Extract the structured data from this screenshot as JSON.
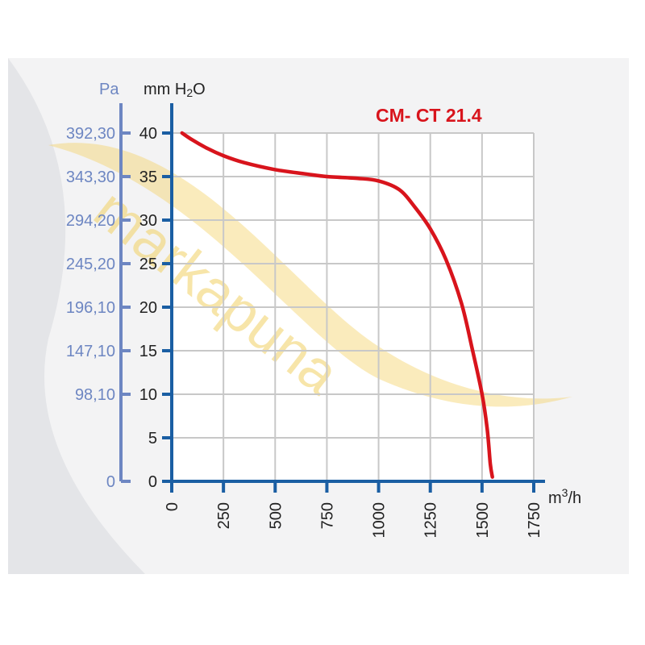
{
  "chart_data": {
    "type": "line",
    "title": "CM- CT 21.4",
    "xlabel": "m³/h",
    "xlabel_base": "m",
    "xlabel_sup": "3",
    "xlabel_tail": "/h",
    "ylabel_left": "Pa",
    "ylabel_right": "mm H₂O",
    "ylabel_right_main": "mm H",
    "ylabel_right_sub": "2",
    "ylabel_right_tail": "O",
    "xlim": [
      0,
      1750
    ],
    "ylim": [
      0,
      40
    ],
    "grid": true,
    "x_ticks": [
      0,
      250,
      500,
      750,
      1000,
      1250,
      1500,
      1750
    ],
    "x_tick_labels": [
      "0",
      "250",
      "500",
      "750",
      "1000",
      "1250",
      "1500",
      "1750"
    ],
    "y_ticks": [
      0,
      5,
      10,
      15,
      20,
      25,
      30,
      35,
      40
    ],
    "y_tick_labels": [
      "0",
      "5",
      "10",
      "15",
      "20",
      "25",
      "30",
      "35",
      "40"
    ],
    "pa_tick_labels": [
      "0",
      "98,10",
      "147,10",
      "196,10",
      "245,20",
      "294,20",
      "343,30",
      "392,30"
    ],
    "pa_tick_positions_mmH2O": [
      0,
      10,
      15,
      20,
      25,
      30,
      35,
      40
    ],
    "series": [
      {
        "x": [
          50,
          100,
          175,
          250,
          350,
          500,
          650,
          750,
          900,
          1000,
          1100,
          1175,
          1250,
          1325,
          1400,
          1450,
          1500,
          1525,
          1540,
          1550
        ],
        "y": [
          40,
          39.2,
          38.2,
          37.4,
          36.6,
          35.8,
          35.3,
          35.0,
          34.8,
          34.5,
          33.5,
          31.5,
          29.0,
          25.5,
          20.5,
          15.5,
          10.0,
          6.0,
          2.0,
          0.5
        ]
      }
    ],
    "colors": {
      "curve": "#d8141c",
      "axis_mm": "#1a5ea3",
      "axis_pa": "#6d86c2",
      "grid": "#c8c8c8"
    }
  },
  "watermark": "markapuna"
}
